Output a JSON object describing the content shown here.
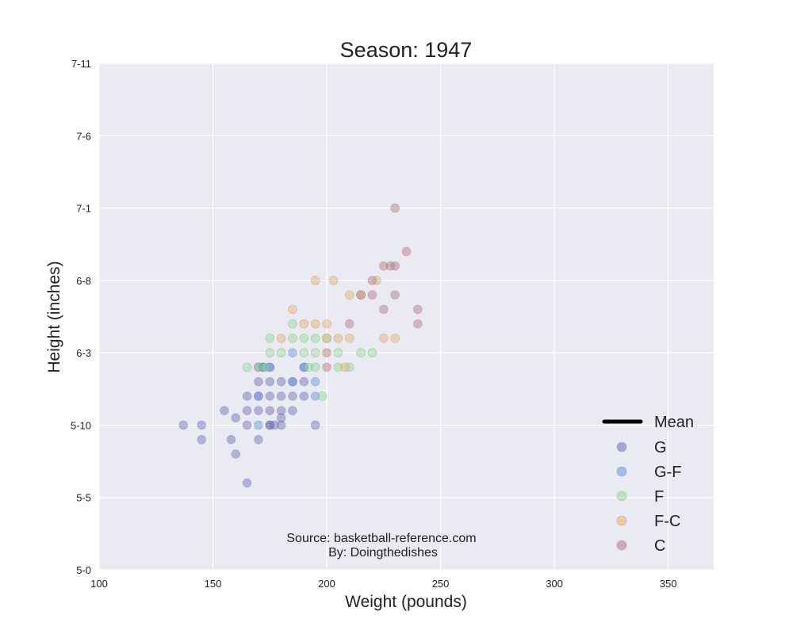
{
  "chart_data": {
    "type": "scatter",
    "title": "Season: 1947",
    "xlabel": "Weight (pounds)",
    "ylabel": "Height (inches)",
    "xlim": [
      100,
      370
    ],
    "ylim": [
      60,
      95
    ],
    "grid": true,
    "x_ticks": [
      {
        "value": 100,
        "label": "100"
      },
      {
        "value": 150,
        "label": "150"
      },
      {
        "value": 200,
        "label": "200"
      },
      {
        "value": 250,
        "label": "250"
      },
      {
        "value": 300,
        "label": "300"
      },
      {
        "value": 350,
        "label": "350"
      }
    ],
    "y_ticks": [
      {
        "value": 60,
        "label": "5-0"
      },
      {
        "value": 65,
        "label": "5-5"
      },
      {
        "value": 70,
        "label": "5-10"
      },
      {
        "value": 75,
        "label": "6-3"
      },
      {
        "value": 80,
        "label": "6-8"
      },
      {
        "value": 85,
        "label": "7-1"
      },
      {
        "value": 90,
        "label": "7-6"
      },
      {
        "value": 95,
        "label": "7-11"
      }
    ],
    "annotations": [
      "Source: basketball-reference.com",
      "By: Doingthedishes"
    ],
    "legend_position": "lower-right",
    "mean_label": "Mean",
    "mean_color": "#000000",
    "series": [
      {
        "name": "G",
        "color": "#6a6abf",
        "points": [
          [
            137,
            70
          ],
          [
            145,
            70
          ],
          [
            145,
            69
          ],
          [
            155,
            71
          ],
          [
            158,
            69
          ],
          [
            160,
            70.5
          ],
          [
            160,
            68
          ],
          [
            165,
            66
          ],
          [
            165,
            71
          ],
          [
            165,
            70
          ],
          [
            165,
            72
          ],
          [
            170,
            69
          ],
          [
            170,
            71
          ],
          [
            170,
            72
          ],
          [
            170,
            73
          ],
          [
            170,
            74
          ],
          [
            172,
            74
          ],
          [
            175,
            71
          ],
          [
            175,
            70
          ],
          [
            175,
            72
          ],
          [
            175,
            73
          ],
          [
            175,
            74
          ],
          [
            180,
            71
          ],
          [
            180,
            72
          ],
          [
            180,
            73
          ],
          [
            180,
            70
          ],
          [
            180,
            70.5
          ],
          [
            185,
            71
          ],
          [
            185,
            72
          ],
          [
            185,
            73
          ],
          [
            190,
            72
          ],
          [
            190,
            73
          ],
          [
            190,
            74
          ],
          [
            195,
            70
          ],
          [
            175,
            70
          ],
          [
            177,
            70
          ]
        ]
      },
      {
        "name": "G-F",
        "color": "#5a96e8",
        "points": [
          [
            170,
            70
          ],
          [
            170,
            72
          ],
          [
            172,
            74
          ],
          [
            175,
            74
          ],
          [
            185,
            75
          ],
          [
            190,
            74
          ],
          [
            195,
            73
          ],
          [
            195,
            72
          ],
          [
            185,
            73
          ]
        ]
      },
      {
        "name": "F",
        "color": "#8fe08f",
        "points": [
          [
            165,
            74
          ],
          [
            170,
            74
          ],
          [
            173,
            74
          ],
          [
            175,
            75
          ],
          [
            175,
            76
          ],
          [
            180,
            75
          ],
          [
            185,
            76
          ],
          [
            185,
            77
          ],
          [
            190,
            75
          ],
          [
            190,
            76
          ],
          [
            192,
            74
          ],
          [
            195,
            75
          ],
          [
            195,
            76
          ],
          [
            195,
            74
          ],
          [
            198,
            72
          ],
          [
            200,
            76
          ],
          [
            205,
            75
          ],
          [
            205,
            74
          ],
          [
            210,
            74
          ],
          [
            215,
            75
          ],
          [
            220,
            75
          ]
        ]
      },
      {
        "name": "F-C",
        "color": "#f0b060",
        "points": [
          [
            180,
            76
          ],
          [
            185,
            78
          ],
          [
            190,
            77
          ],
          [
            195,
            77
          ],
          [
            195,
            80
          ],
          [
            200,
            77
          ],
          [
            200,
            76
          ],
          [
            203,
            80
          ],
          [
            205,
            76
          ],
          [
            208,
            74
          ],
          [
            210,
            76
          ],
          [
            210,
            79
          ],
          [
            215,
            79
          ],
          [
            222,
            80
          ],
          [
            225,
            76
          ],
          [
            230,
            76
          ]
        ]
      },
      {
        "name": "C",
        "color": "#b87878",
        "points": [
          [
            200,
            75
          ],
          [
            200,
            74
          ],
          [
            210,
            77
          ],
          [
            215,
            79
          ],
          [
            220,
            80
          ],
          [
            220,
            79
          ],
          [
            225,
            81
          ],
          [
            225,
            78
          ],
          [
            228,
            81
          ],
          [
            230,
            81
          ],
          [
            230,
            79
          ],
          [
            230,
            85
          ],
          [
            235,
            82
          ],
          [
            240,
            78
          ],
          [
            240,
            77
          ]
        ]
      }
    ]
  }
}
